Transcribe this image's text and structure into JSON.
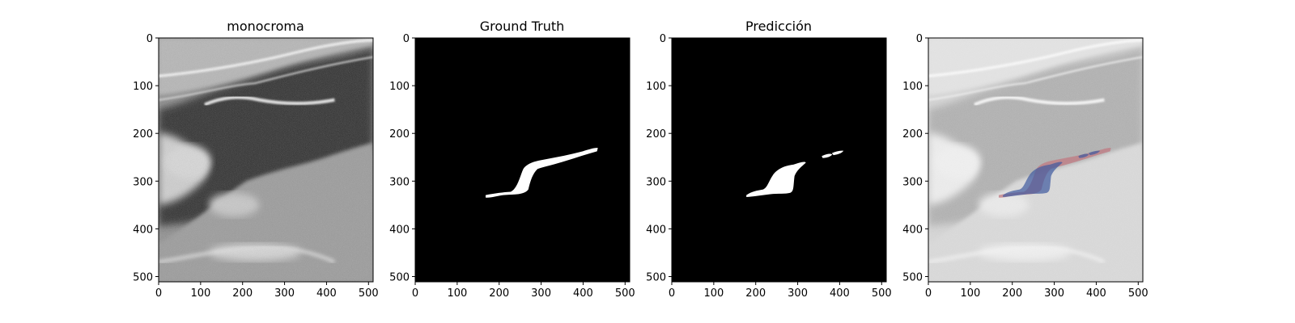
{
  "figure": {
    "panels": [
      {
        "id": "monocroma",
        "title": "monocroma",
        "kind": "ultrasound"
      },
      {
        "id": "ground-truth",
        "title": "Ground Truth",
        "kind": "mask-gt"
      },
      {
        "id": "prediccion",
        "title": "Predicción",
        "kind": "mask-pred"
      },
      {
        "id": "overlay",
        "title": "",
        "kind": "overlay"
      }
    ],
    "axes": {
      "x_ticks": [
        "0",
        "100",
        "200",
        "300",
        "400",
        "500"
      ],
      "y_ticks": [
        "0",
        "100",
        "200",
        "300",
        "400",
        "500"
      ],
      "xlim": [
        0,
        511
      ],
      "ylim": [
        511,
        0
      ]
    },
    "colors": {
      "background": "#ffffff",
      "mask_background": "#000000",
      "mask_foreground": "#ffffff",
      "overlay_gt": "#c07a82",
      "overlay_pred": "#3f5aa0"
    }
  }
}
